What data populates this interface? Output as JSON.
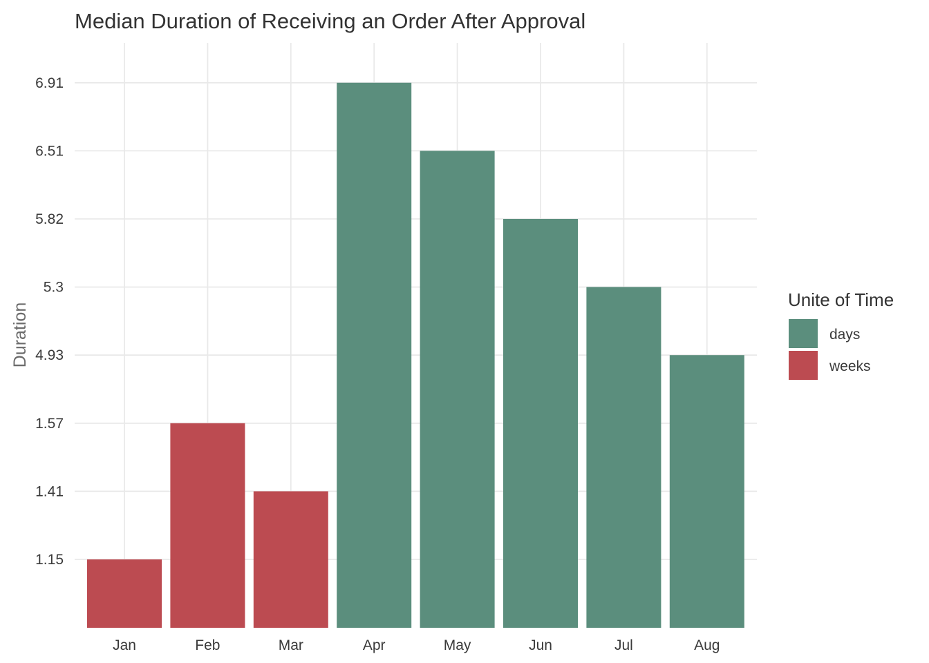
{
  "chart_data": {
    "type": "bar",
    "title": "Median Duration of Receiving an Order After Approval",
    "xlabel": "",
    "ylabel": "Duration",
    "categories": [
      "Jan",
      "Feb",
      "Mar",
      "Apr",
      "May",
      "Jun",
      "Jul",
      "Aug"
    ],
    "values": [
      1.15,
      1.57,
      1.41,
      6.91,
      6.51,
      5.82,
      5.3,
      4.93
    ],
    "units": [
      "weeks",
      "weeks",
      "weeks",
      "days",
      "days",
      "days",
      "days",
      "days"
    ],
    "y_axis_scale": "categorical (ordered by tick labels, bars end at their tick)",
    "y_ticks": [
      "1.15",
      "1.41",
      "1.57",
      "4.93",
      "5.3",
      "5.82",
      "6.51",
      "6.91"
    ],
    "grid": true,
    "legend": {
      "title": "Unite of Time",
      "placement": "right",
      "entries": [
        {
          "label": "days",
          "color": "#5b8e7d"
        },
        {
          "label": "weeks",
          "color": "#bc4b51"
        }
      ]
    }
  }
}
